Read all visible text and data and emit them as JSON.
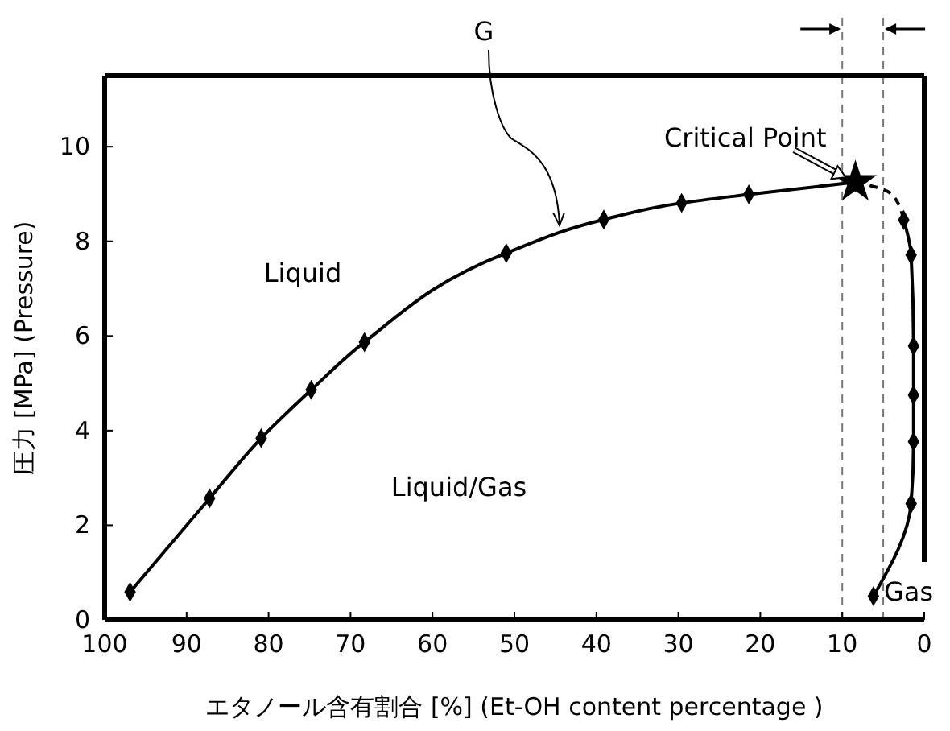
{
  "chart_data": {
    "type": "line",
    "xlabel": "エタノール含有割合 [%] (Et-OH content percentage )",
    "ylabel": "圧力 [MPa] (Pressure)",
    "xlim": [
      100,
      0
    ],
    "xticks": [
      100,
      90,
      80,
      70,
      60,
      50,
      40,
      30,
      20,
      10,
      0
    ],
    "ylim": [
      0,
      11.5
    ],
    "yticks": [
      0,
      2,
      4,
      6,
      8,
      10
    ],
    "grid": false,
    "series": [
      {
        "color": "#000000",
        "marker": "diamond",
        "line_style": "solid",
        "x": [
          96.9,
          87.2,
          80.9,
          74.8,
          68.3,
          51.0,
          39.1,
          29.6,
          21.4,
          8.4
        ],
        "values": [
          0.59,
          2.57,
          3.84,
          4.86,
          5.87,
          7.75,
          8.46,
          8.81,
          8.99,
          9.25
        ]
      },
      {
        "color": "#000000",
        "marker": "none",
        "line_style": "dashed",
        "x": [
          8.4,
          6,
          4,
          2.5
        ],
        "values": [
          9.25,
          9.15,
          9.0,
          8.45
        ]
      },
      {
        "color": "#000000",
        "marker": "diamond",
        "line_style": "solid",
        "x": [
          2.5,
          1.6,
          1.3,
          1.3,
          1.3,
          1.6,
          6.2
        ],
        "values": [
          8.45,
          7.71,
          5.79,
          4.75,
          3.77,
          2.46,
          0.5
        ]
      },
      {
        "type": "scatter",
        "color": "#000000",
        "marker": "star",
        "x": [
          8.4
        ],
        "values": [
          9.25
        ]
      }
    ],
    "ref_lines": [
      {
        "axis": "x",
        "value": 10,
        "color": "#777777",
        "line_style": "dashed"
      },
      {
        "axis": "x",
        "value": 5,
        "color": "#777777",
        "line_style": "dashed"
      }
    ],
    "annotations": [
      "Liquid",
      "Liquid/Gas",
      "Gas",
      {
        "text": "Critical Point",
        "x": 8.4,
        "y": 9.25
      },
      {
        "text": "G",
        "x": 44.5,
        "y": 8.3
      }
    ]
  }
}
